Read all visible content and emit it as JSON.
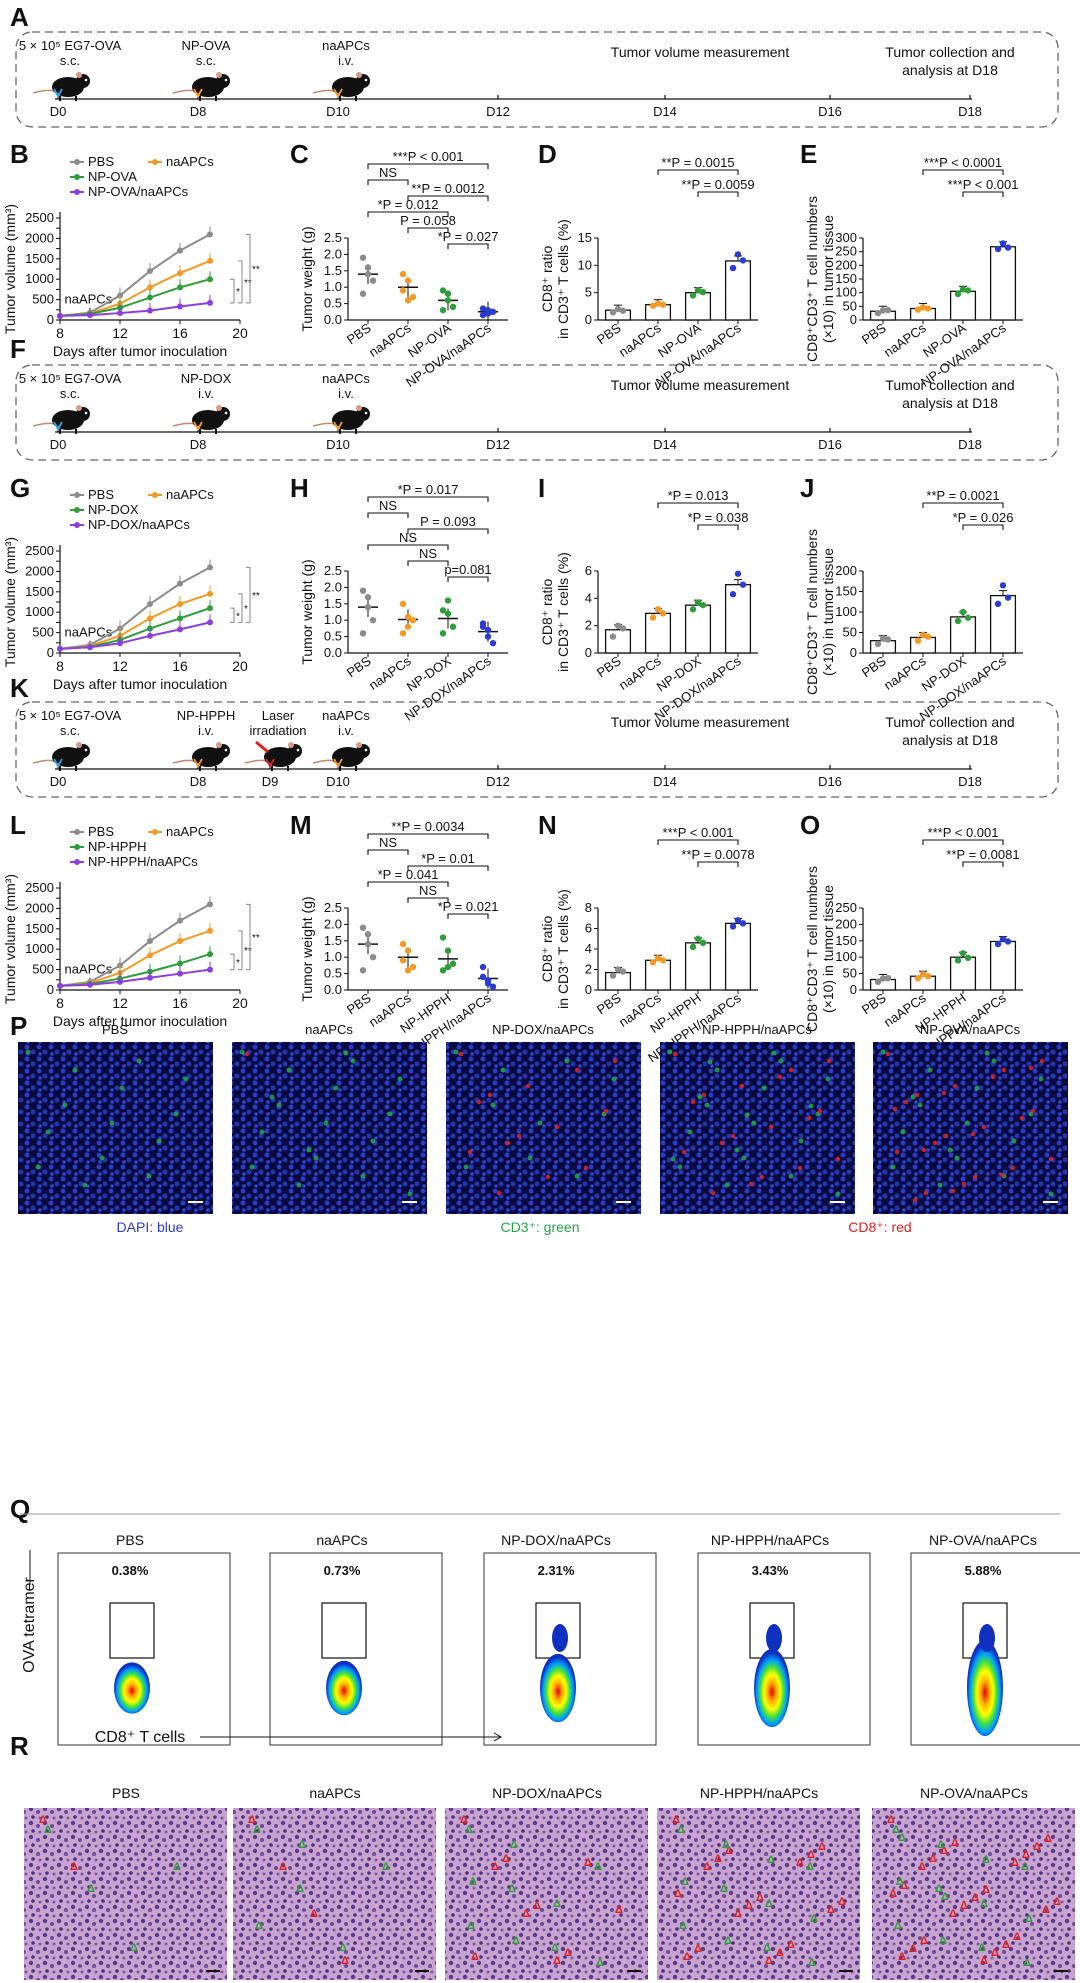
{
  "colors": {
    "pbs": "#8c8c8c",
    "naapcs": "#f39a26",
    "np": "#2e9e3a",
    "combo": "#8c3fe0",
    "combo_dot": "#2c3bd0",
    "timeline_d0": "#2aa7e0",
    "timeline_other": "#f39a26",
    "laser": "#e02020",
    "dapi": "#2c3bd0",
    "cd3": "#22a84a",
    "cd8": "#e02020"
  },
  "panel_letters": [
    "A",
    "B",
    "C",
    "D",
    "E",
    "F",
    "G",
    "H",
    "I",
    "J",
    "K",
    "L",
    "M",
    "N",
    "O",
    "P",
    "Q",
    "R"
  ],
  "timelines": [
    {
      "letter": "A",
      "events": [
        {
          "label": "5 × 10⁵ EG7-OVA",
          "sub": "s.c."
        },
        {
          "label": "NP-OVA",
          "sub": "s.c."
        },
        {
          "label": "naAPCs",
          "sub": "i.v."
        }
      ],
      "days": [
        "D0",
        "D8",
        "D10",
        "D12",
        "D14",
        "D16",
        "D18"
      ],
      "measure": "Tumor volume measurement",
      "end1": "Tumor collection and",
      "end2": "analysis at D18"
    },
    {
      "letter": "F",
      "events": [
        {
          "label": "5 × 10⁵ EG7-OVA",
          "sub": "s.c."
        },
        {
          "label": "NP-DOX",
          "sub": "i.v."
        },
        {
          "label": "naAPCs",
          "sub": "i.v."
        }
      ],
      "days": [
        "D0",
        "D8",
        "D10",
        "D12",
        "D14",
        "D16",
        "D18"
      ],
      "measure": "Tumor volume measurement",
      "end1": "Tumor collection and",
      "end2": "analysis at  D18"
    },
    {
      "letter": "K",
      "events": [
        {
          "label": "5 × 10⁵ EG7-OVA",
          "sub": "s.c."
        },
        {
          "label": "NP-HPPH",
          "sub": "i.v."
        },
        {
          "label": "Laser",
          "sub": "irradiation"
        },
        {
          "label": "naAPCs",
          "sub": "i.v."
        }
      ],
      "days": [
        "D0",
        "D8",
        "D9",
        "D10",
        "D12",
        "D14",
        "D16",
        "D18"
      ],
      "measure": "Tumor volume measurement",
      "end1": "Tumor collection and",
      "end2": "analysis at  D18"
    }
  ],
  "chart_data": [
    {
      "panel": "B",
      "type": "line",
      "ylabel": "Tumor volume (mm³)",
      "xlabel": "Days after tumor inoculation",
      "x": [
        8,
        10,
        12,
        14,
        16,
        18
      ],
      "xticks": [
        "8",
        "12",
        "16",
        "20"
      ],
      "ylim": [
        0,
        2500
      ],
      "yticks": [
        "0",
        "250",
        "500",
        "750",
        "1000",
        "1250",
        "1500",
        "1750",
        "2000",
        "2250",
        "2500"
      ],
      "annotation": "naAPCs",
      "series": [
        {
          "name": "PBS",
          "values": [
            100,
            180,
            600,
            1200,
            1700,
            2100
          ]
        },
        {
          "name": "naAPCs",
          "values": [
            100,
            160,
            400,
            800,
            1150,
            1450
          ]
        },
        {
          "name": "NP-OVA",
          "values": [
            100,
            150,
            300,
            550,
            800,
            1000
          ]
        },
        {
          "name": "NP-OVA/naAPCs",
          "values": [
            100,
            120,
            170,
            230,
            330,
            420
          ]
        }
      ],
      "sig": [
        "*",
        "**",
        "**"
      ]
    },
    {
      "panel": "C",
      "type": "scatter",
      "ylabel": "Tumor weight (g)",
      "categories": [
        "PBS",
        "naAPCs",
        "NP-OVA",
        "NP-OVA/naAPCs"
      ],
      "ylim": [
        0,
        2.5
      ],
      "yticks": [
        "0.0",
        "0.5",
        "1.0",
        "1.5",
        "2.0",
        "2.5"
      ],
      "means": [
        1.4,
        1.0,
        0.6,
        0.25
      ],
      "points": [
        [
          1.9,
          1.6,
          1.2,
          0.8,
          1.4
        ],
        [
          1.4,
          1.2,
          0.7,
          0.9,
          0.6
        ],
        [
          0.9,
          0.6,
          0.4,
          0.3,
          0.8
        ],
        [
          0.35,
          0.2,
          0.25,
          0.15,
          0.3
        ]
      ],
      "brackets": [
        {
          "text": "***P < 0.001",
          "from": 0,
          "to": 3
        },
        {
          "text": "NS",
          "from": 0,
          "to": 1
        },
        {
          "text": "**P = 0.0012",
          "from": 1,
          "to": 3
        },
        {
          "text": "*P = 0.012",
          "from": 0,
          "to": 2
        },
        {
          "text": "P = 0.058",
          "from": 1,
          "to": 2
        },
        {
          "text": "*P = 0.027",
          "from": 2,
          "to": 3
        }
      ]
    },
    {
      "panel": "D",
      "type": "bar",
      "ylabel": "CD8⁺ ratio",
      "ylabel2": "in CD3⁺ T cells (%)",
      "categories": [
        "PBS",
        "naAPCs",
        "NP-OVA",
        "NP-OVA/naAPCs"
      ],
      "values": [
        1.8,
        2.8,
        5.0,
        10.8
      ],
      "ylim": [
        0,
        15
      ],
      "yticks": [
        "0",
        "5",
        "10",
        "15"
      ],
      "points": [
        [
          1.4,
          2.0,
          1.7
        ],
        [
          2.6,
          3.0,
          2.8
        ],
        [
          4.5,
          5.4,
          5.1
        ],
        [
          9.5,
          12.0,
          10.9
        ]
      ],
      "brackets": [
        {
          "text": "**P = 0.0015",
          "from": 1,
          "to": 3
        },
        {
          "text": "**P = 0.0059",
          "from": 2,
          "to": 3
        }
      ]
    },
    {
      "panel": "E",
      "type": "bar",
      "ylabel": "CD8⁺CD3⁺ T cell numbers",
      "ylabel2": "(×10) in tumor tissue",
      "categories": [
        "PBS",
        "naAPCs",
        "NP-OVA",
        "NP-OVA/naAPCs"
      ],
      "values": [
        32,
        42,
        105,
        268
      ],
      "ylim": [
        0,
        300
      ],
      "yticks": [
        "0",
        "50",
        "100",
        "150",
        "200",
        "250",
        "300"
      ],
      "points": [
        [
          25,
          35,
          36
        ],
        [
          38,
          46,
          42
        ],
        [
          95,
          112,
          108
        ],
        [
          260,
          280,
          265
        ]
      ],
      "brackets": [
        {
          "text": "***P < 0.0001",
          "from": 1,
          "to": 3
        },
        {
          "text": "***P < 0.001",
          "from": 2,
          "to": 3
        }
      ]
    },
    {
      "panel": "G",
      "type": "line",
      "ylabel": "Tumor volume (mm³)",
      "xlabel": "Days after tumor inoculation",
      "x": [
        8,
        10,
        12,
        14,
        16,
        18
      ],
      "xticks": [
        "8",
        "12",
        "16",
        "20"
      ],
      "ylim": [
        0,
        2500
      ],
      "yticks": [
        "0",
        "250",
        "500",
        "750",
        "1000",
        "1250",
        "1500",
        "1750",
        "2000",
        "2250",
        "2500"
      ],
      "annotation": "naAPCs",
      "series": [
        {
          "name": "PBS",
          "values": [
            100,
            200,
            600,
            1200,
            1700,
            2100
          ]
        },
        {
          "name": "naAPCs",
          "values": [
            100,
            170,
            420,
            850,
            1200,
            1450
          ]
        },
        {
          "name": "NP-DOX",
          "values": [
            100,
            150,
            320,
            600,
            850,
            1100
          ]
        },
        {
          "name": "NP-DOX/naAPCs",
          "values": [
            100,
            140,
            240,
            420,
            580,
            750
          ]
        }
      ],
      "sig": [
        "*",
        "*",
        "**"
      ]
    },
    {
      "panel": "H",
      "type": "scatter",
      "ylabel": "Tumor weight (g)",
      "categories": [
        "PBS",
        "naAPCs",
        "NP-DOX",
        "NP-DOX/naAPCs"
      ],
      "ylim": [
        0,
        2.5
      ],
      "yticks": [
        "0.0",
        "0.5",
        "1.0",
        "1.5",
        "2.0",
        "2.5"
      ],
      "means": [
        1.4,
        1.02,
        1.05,
        0.65
      ],
      "points": [
        [
          1.9,
          1.4,
          1.0,
          0.6,
          1.7
        ],
        [
          1.5,
          0.8,
          1.0,
          0.6,
          1.1
        ],
        [
          1.3,
          1.6,
          0.8,
          0.6,
          1.2
        ],
        [
          0.9,
          0.5,
          0.3,
          0.8,
          0.7
        ]
      ],
      "brackets": [
        {
          "text": "*P = 0.017",
          "from": 0,
          "to": 3
        },
        {
          "text": "NS",
          "from": 0,
          "to": 1
        },
        {
          "text": "P = 0.093",
          "from": 1,
          "to": 3
        },
        {
          "text": "NS",
          "from": 0,
          "to": 2
        },
        {
          "text": "NS",
          "from": 1,
          "to": 2
        },
        {
          "text": "p=0.081",
          "from": 2,
          "to": 3
        }
      ]
    },
    {
      "panel": "I",
      "type": "bar",
      "ylabel": "CD8⁺ ratio",
      "ylabel2": "in CD3⁺ T cells (%)",
      "categories": [
        "PBS",
        "naAPCs",
        "NP-DOX",
        "NP-DOX/naAPCs"
      ],
      "values": [
        1.7,
        2.9,
        3.5,
        5.0
      ],
      "ylim": [
        0,
        6
      ],
      "yticks": [
        "0",
        "2",
        "4",
        "6"
      ],
      "points": [
        [
          1.2,
          2.0,
          1.8
        ],
        [
          2.6,
          3.2,
          2.9
        ],
        [
          3.2,
          3.7,
          3.5
        ],
        [
          4.3,
          5.8,
          5.0
        ]
      ],
      "brackets": [
        {
          "text": "*P = 0.013",
          "from": 1,
          "to": 3
        },
        {
          "text": "*P = 0.038",
          "from": 2,
          "to": 3
        }
      ]
    },
    {
      "panel": "J",
      "type": "bar",
      "ylabel": "CD8⁺CD3⁺ T cell numbers",
      "ylabel2": "(×10) in tumor tissue",
      "categories": [
        "PBS",
        "naAPCs",
        "NP-DOX",
        "NP-DOX/naAPCs"
      ],
      "values": [
        30,
        38,
        88,
        140
      ],
      "ylim": [
        0,
        200
      ],
      "yticks": [
        "0",
        "50",
        "100",
        "150",
        "200"
      ],
      "points": [
        [
          22,
          35,
          33
        ],
        [
          30,
          44,
          40
        ],
        [
          78,
          100,
          86
        ],
        [
          120,
          165,
          135
        ]
      ],
      "brackets": [
        {
          "text": "**P = 0.0021",
          "from": 1,
          "to": 3
        },
        {
          "text": "*P = 0.026",
          "from": 2,
          "to": 3
        }
      ]
    },
    {
      "panel": "L",
      "type": "line",
      "ylabel": "Tumor volume (mm³)",
      "xlabel": "Days after tumor inoculation",
      "x": [
        8,
        10,
        12,
        14,
        16,
        18
      ],
      "xticks": [
        "8",
        "12",
        "16",
        "20"
      ],
      "ylim": [
        0,
        2500
      ],
      "yticks": [
        "0",
        "250",
        "500",
        "750",
        "1000",
        "1250",
        "1500",
        "1750",
        "2000",
        "2250",
        "2500"
      ],
      "annotation": "naAPCs",
      "series": [
        {
          "name": "PBS",
          "values": [
            100,
            200,
            600,
            1200,
            1700,
            2100
          ]
        },
        {
          "name": "naAPCs",
          "values": [
            100,
            170,
            420,
            850,
            1200,
            1450
          ]
        },
        {
          "name": "NP-HPPH",
          "values": [
            100,
            150,
            280,
            450,
            650,
            880
          ]
        },
        {
          "name": "NP-HPPH/naAPCs",
          "values": [
            100,
            130,
            200,
            300,
            400,
            500
          ]
        }
      ],
      "sig": [
        "*",
        "**",
        "**"
      ]
    },
    {
      "panel": "M",
      "type": "scatter",
      "ylabel": "Tumor weight (g)",
      "categories": [
        "PBS",
        "naAPCs",
        "NP-HPPH",
        "NP-HPPH/naAPCs"
      ],
      "ylim": [
        0,
        2.5
      ],
      "yticks": [
        "0.0",
        "0.5",
        "1.0",
        "1.5",
        "2.0",
        "2.5"
      ],
      "means": [
        1.4,
        1.0,
        0.95,
        0.35
      ],
      "points": [
        [
          1.9,
          1.4,
          1.0,
          0.6,
          1.7
        ],
        [
          1.4,
          1.2,
          0.7,
          0.9,
          0.6
        ],
        [
          1.6,
          1.2,
          0.8,
          0.6,
          0.7
        ],
        [
          0.7,
          0.3,
          0.1,
          0.4,
          0.2
        ]
      ],
      "brackets": [
        {
          "text": "**P = 0.0034",
          "from": 0,
          "to": 3
        },
        {
          "text": "NS",
          "from": 0,
          "to": 1
        },
        {
          "text": "*P = 0.01",
          "from": 1,
          "to": 3
        },
        {
          "text": "*P = 0.041",
          "from": 0,
          "to": 2
        },
        {
          "text": "NS",
          "from": 1,
          "to": 2
        },
        {
          "text": "*P = 0.021",
          "from": 2,
          "to": 3
        }
      ]
    },
    {
      "panel": "N",
      "type": "bar",
      "ylabel": "CD8⁺ ratio",
      "ylabel2": "in CD3⁺ T cells (%)",
      "categories": [
        "PBS",
        "naAPCs",
        "NP-HPPH",
        "NP-HPPH/naAPCs"
      ],
      "values": [
        1.7,
        2.9,
        4.6,
        6.5
      ],
      "ylim": [
        0,
        8
      ],
      "yticks": [
        "0",
        "2",
        "4",
        "6",
        "8"
      ],
      "points": [
        [
          1.4,
          2.0,
          1.8
        ],
        [
          2.7,
          3.1,
          2.9
        ],
        [
          4.2,
          5.0,
          4.6
        ],
        [
          6.2,
          6.8,
          6.5
        ]
      ],
      "brackets": [
        {
          "text": "***P < 0.001",
          "from": 1,
          "to": 3
        },
        {
          "text": "**P = 0.0078",
          "from": 2,
          "to": 3
        }
      ]
    },
    {
      "panel": "O",
      "type": "bar",
      "ylabel": "CD8⁺CD3⁺ T cell numbers",
      "ylabel2": "(×10) in tumor tissue",
      "categories": [
        "PBS",
        "naAPCs",
        "NP-HPPH",
        "NP-HPPH/naAPCs"
      ],
      "values": [
        32,
        42,
        100,
        148
      ],
      "ylim": [
        0,
        250
      ],
      "yticks": [
        "0",
        "50",
        "100",
        "150",
        "200",
        "250"
      ],
      "points": [
        [
          25,
          35,
          36
        ],
        [
          36,
          48,
          42
        ],
        [
          90,
          112,
          98
        ],
        [
          140,
          155,
          148
        ]
      ],
      "brackets": [
        {
          "text": "***P < 0.001",
          "from": 1,
          "to": 3
        },
        {
          "text": "**P = 0.0081",
          "from": 2,
          "to": 3
        }
      ]
    }
  ],
  "panelP": {
    "titles": [
      "PBS",
      "naAPCs",
      "NP-DOX/naAPCs",
      "NP-HPPH/naAPCs",
      "NP-OVA/naAPCs"
    ],
    "legend": [
      "DAPI: blue",
      "CD3⁺: green",
      "CD8⁺:  red"
    ]
  },
  "panelQ": {
    "titles": [
      "PBS",
      "naAPCs",
      "NP-DOX/naAPCs",
      "NP-HPPH/naAPCs",
      "NP-OVA/naAPCs"
    ],
    "values": [
      0.38,
      0.73,
      2.31,
      3.43,
      5.88
    ],
    "percents": [
      "0.38%",
      "0.73%",
      "2.31%",
      "3.43%",
      "5.88%"
    ],
    "yaxis": "OVA tetramer",
    "xaxis": "CD8⁺ T cells"
  },
  "panelR": {
    "titles": [
      "PBS",
      "naAPCs",
      "NP-DOX/naAPCs",
      "NP-HPPH/naAPCs",
      "NP-OVA/naAPCs"
    ]
  }
}
